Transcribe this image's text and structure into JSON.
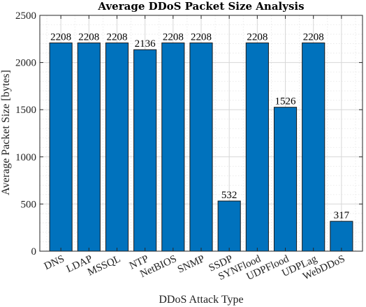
{
  "chart_data": {
    "type": "bar",
    "title": "Average DDoS Packet Size Analysis",
    "xlabel": "DDoS Attack Type",
    "ylabel": "Average Packet Size [bytes]",
    "categories": [
      "DNS",
      "LDAP",
      "MSSQL",
      "NTP",
      "NetBIOS",
      "SNMP",
      "SSDP",
      "SYNFlood",
      "UDPFlood",
      "UDPLag",
      "WebDDoS"
    ],
    "values": [
      2208,
      2208,
      2208,
      2136,
      2208,
      2208,
      532,
      2208,
      1526,
      2208,
      317
    ],
    "data_labels": [
      "2208",
      "2208",
      "2208",
      "2136",
      "2208",
      "2208",
      "532",
      "2208",
      "1526",
      "2208",
      "317"
    ],
    "ylim": [
      0,
      2500
    ],
    "yticks": [
      0,
      500,
      1000,
      1500,
      2000,
      2500
    ],
    "ytick_labels": [
      "0",
      "500",
      "1000",
      "1500",
      "2000",
      "2500"
    ],
    "grid": true,
    "minor_grid": true,
    "bar_color": "#0072BD"
  }
}
